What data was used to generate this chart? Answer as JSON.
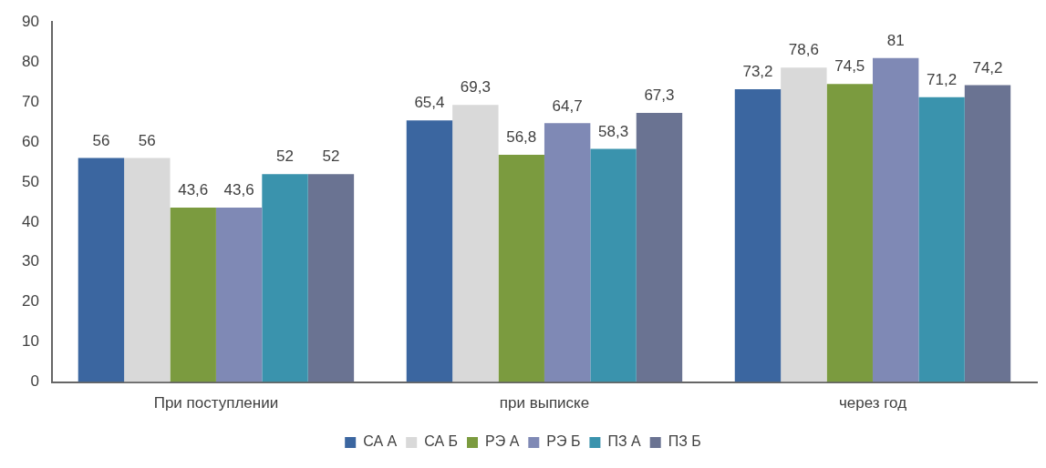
{
  "chart_data": {
    "type": "bar",
    "categories": [
      "При поступлении",
      "при выписке",
      "через год"
    ],
    "series": [
      {
        "name": "СА А",
        "color": "#3b66a0",
        "values": [
          56,
          65.4,
          73.2
        ],
        "value_labels": [
          "56",
          "65,4",
          "73,2"
        ]
      },
      {
        "name": "СА Б",
        "color": "#d9d9d9",
        "values": [
          56,
          69.3,
          78.6
        ],
        "value_labels": [
          "56",
          "69,3",
          "78,6"
        ]
      },
      {
        "name": "РЭ А",
        "color": "#7b9b3f",
        "values": [
          43.6,
          56.8,
          74.5
        ],
        "value_labels": [
          "43,6",
          "56,8",
          "74,5"
        ]
      },
      {
        "name": "РЭ Б",
        "color": "#7f89b5",
        "values": [
          43.6,
          64.7,
          81
        ],
        "value_labels": [
          "43,6",
          "64,7",
          "81"
        ]
      },
      {
        "name": "ПЗ А",
        "color": "#3a93ad",
        "values": [
          52,
          58.3,
          71.2
        ],
        "value_labels": [
          "52",
          "58,3",
          "71,2"
        ]
      },
      {
        "name": "ПЗ Б",
        "color": "#6a7392",
        "values": [
          52,
          67.3,
          74.2
        ],
        "value_labels": [
          "52",
          "67,3",
          "74,2"
        ]
      }
    ],
    "ylim": [
      0,
      90
    ],
    "yticks": [
      0,
      10,
      20,
      30,
      40,
      50,
      60,
      70,
      80,
      90
    ],
    "grid": false,
    "legend": "bottom"
  }
}
